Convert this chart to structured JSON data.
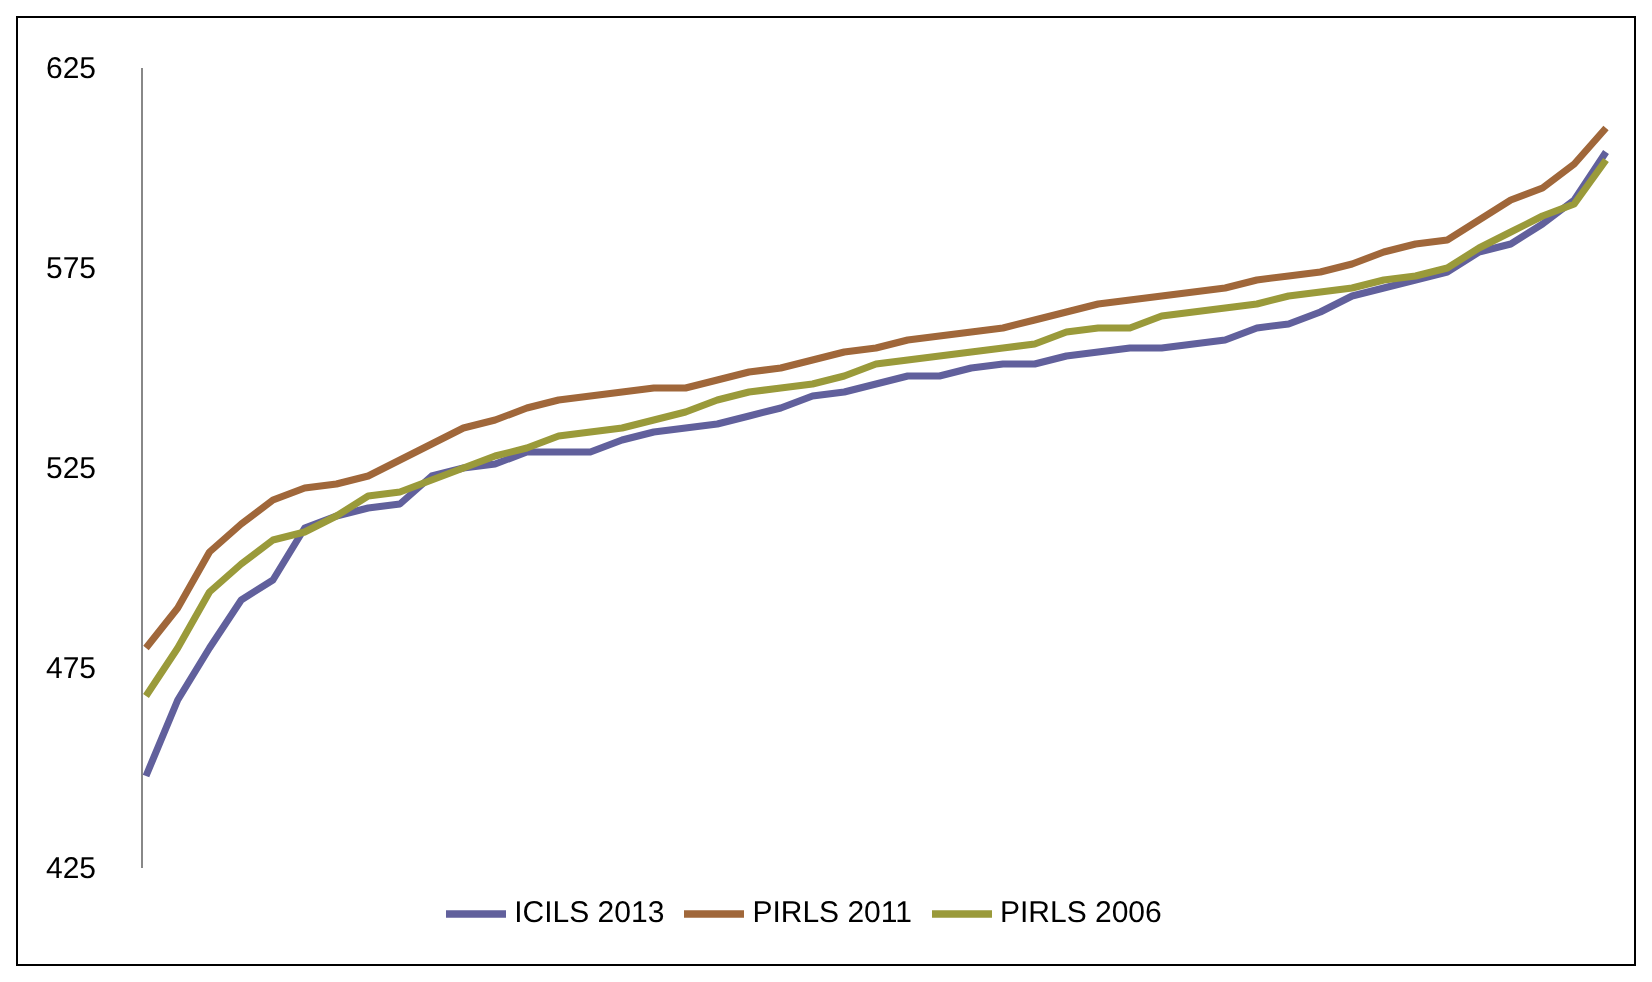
{
  "chart_data": {
    "type": "line",
    "categories": [
      null,
      null,
      null,
      null,
      null,
      null,
      null,
      null,
      null,
      null,
      null,
      null,
      null,
      null,
      null,
      null,
      null,
      null,
      null,
      null,
      null,
      null,
      null,
      null,
      null,
      null,
      null,
      null,
      null,
      null,
      null,
      null,
      null,
      null,
      null,
      null,
      null,
      null,
      null,
      null,
      null,
      null,
      null,
      null,
      null,
      null,
      null
    ],
    "series": [
      {
        "name": "ICILS 2013",
        "color": "#61609c",
        "values": [
          448,
          467,
          480,
          492,
          497,
          510,
          513,
          515,
          516,
          523,
          525,
          526,
          529,
          529,
          529,
          532,
          534,
          535,
          536,
          538,
          540,
          543,
          544,
          546,
          548,
          548,
          550,
          551,
          551,
          553,
          554,
          555,
          555,
          556,
          557,
          560,
          561,
          564,
          568,
          570,
          572,
          574,
          579,
          581,
          586,
          592,
          604
        ]
      },
      {
        "name": "PIRLS 2011",
        "color": "#a0673a",
        "values": [
          480,
          490,
          504,
          511,
          517,
          520,
          521,
          523,
          527,
          531,
          535,
          537,
          540,
          542,
          543,
          544,
          545,
          545,
          547,
          549,
          550,
          552,
          554,
          555,
          557,
          558,
          559,
          560,
          562,
          564,
          566,
          567,
          568,
          569,
          570,
          572,
          573,
          574,
          576,
          579,
          581,
          582,
          587,
          592,
          595,
          601,
          610
        ]
      },
      {
        "name": "PIRLS 2006",
        "color": "#9a9a3a",
        "values": [
          468,
          480,
          494,
          501,
          507,
          509,
          513,
          518,
          519,
          522,
          525,
          528,
          530,
          533,
          534,
          535,
          537,
          539,
          542,
          544,
          545,
          546,
          548,
          551,
          552,
          553,
          554,
          555,
          556,
          559,
          560,
          560,
          563,
          564,
          565,
          566,
          568,
          569,
          570,
          572,
          573,
          575,
          580,
          584,
          588,
          591,
          602
        ]
      }
    ],
    "ylim": [
      425,
      625
    ],
    "yticks": [
      425,
      475,
      525,
      575,
      625
    ],
    "grid": false,
    "legend": "bottom",
    "tick_labels": "y",
    "marker": "none",
    "line_style": "solid"
  }
}
